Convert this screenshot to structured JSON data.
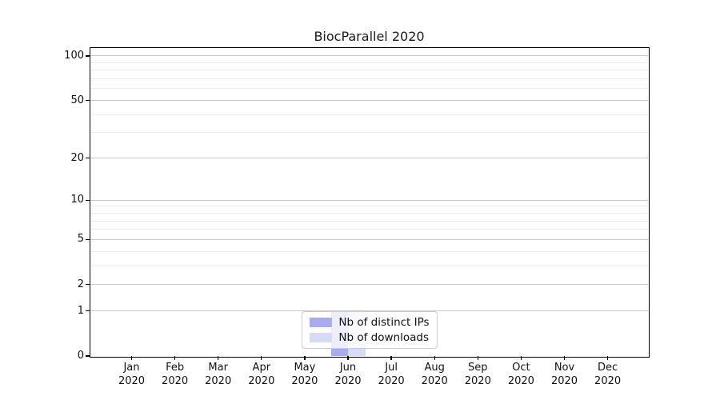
{
  "chart_data": {
    "type": "bar",
    "title": "BiocParallel 2020",
    "xlabel": "",
    "ylabel": "",
    "categories": [
      {
        "month": "Jan",
        "year": "2020"
      },
      {
        "month": "Feb",
        "year": "2020"
      },
      {
        "month": "Mar",
        "year": "2020"
      },
      {
        "month": "Apr",
        "year": "2020"
      },
      {
        "month": "May",
        "year": "2020"
      },
      {
        "month": "Jun",
        "year": "2020"
      },
      {
        "month": "Jul",
        "year": "2020"
      },
      {
        "month": "Aug",
        "year": "2020"
      },
      {
        "month": "Sep",
        "year": "2020"
      },
      {
        "month": "Oct",
        "year": "2020"
      },
      {
        "month": "Nov",
        "year": "2020"
      },
      {
        "month": "Dec",
        "year": "2020"
      }
    ],
    "series": [
      {
        "name": "Nb of distinct IPs",
        "color": "#a8acec",
        "values": [
          0,
          0,
          0,
          0,
          0,
          1,
          0,
          0,
          0,
          0,
          0,
          0
        ]
      },
      {
        "name": "Nb of downloads",
        "color": "#d8dbf6",
        "values": [
          0,
          0,
          0,
          0,
          0,
          1,
          0,
          0,
          0,
          0,
          0,
          0
        ]
      }
    ],
    "y_axis": {
      "scale": "log1p",
      "ticks": [
        0,
        1,
        2,
        5,
        10,
        20,
        50,
        100
      ],
      "minor_ticks": [
        3,
        4,
        6,
        7,
        8,
        9,
        30,
        40,
        60,
        70,
        80,
        90
      ],
      "ylim": [
        0,
        113.2
      ]
    },
    "grid": true,
    "legend_position": "lower center"
  }
}
